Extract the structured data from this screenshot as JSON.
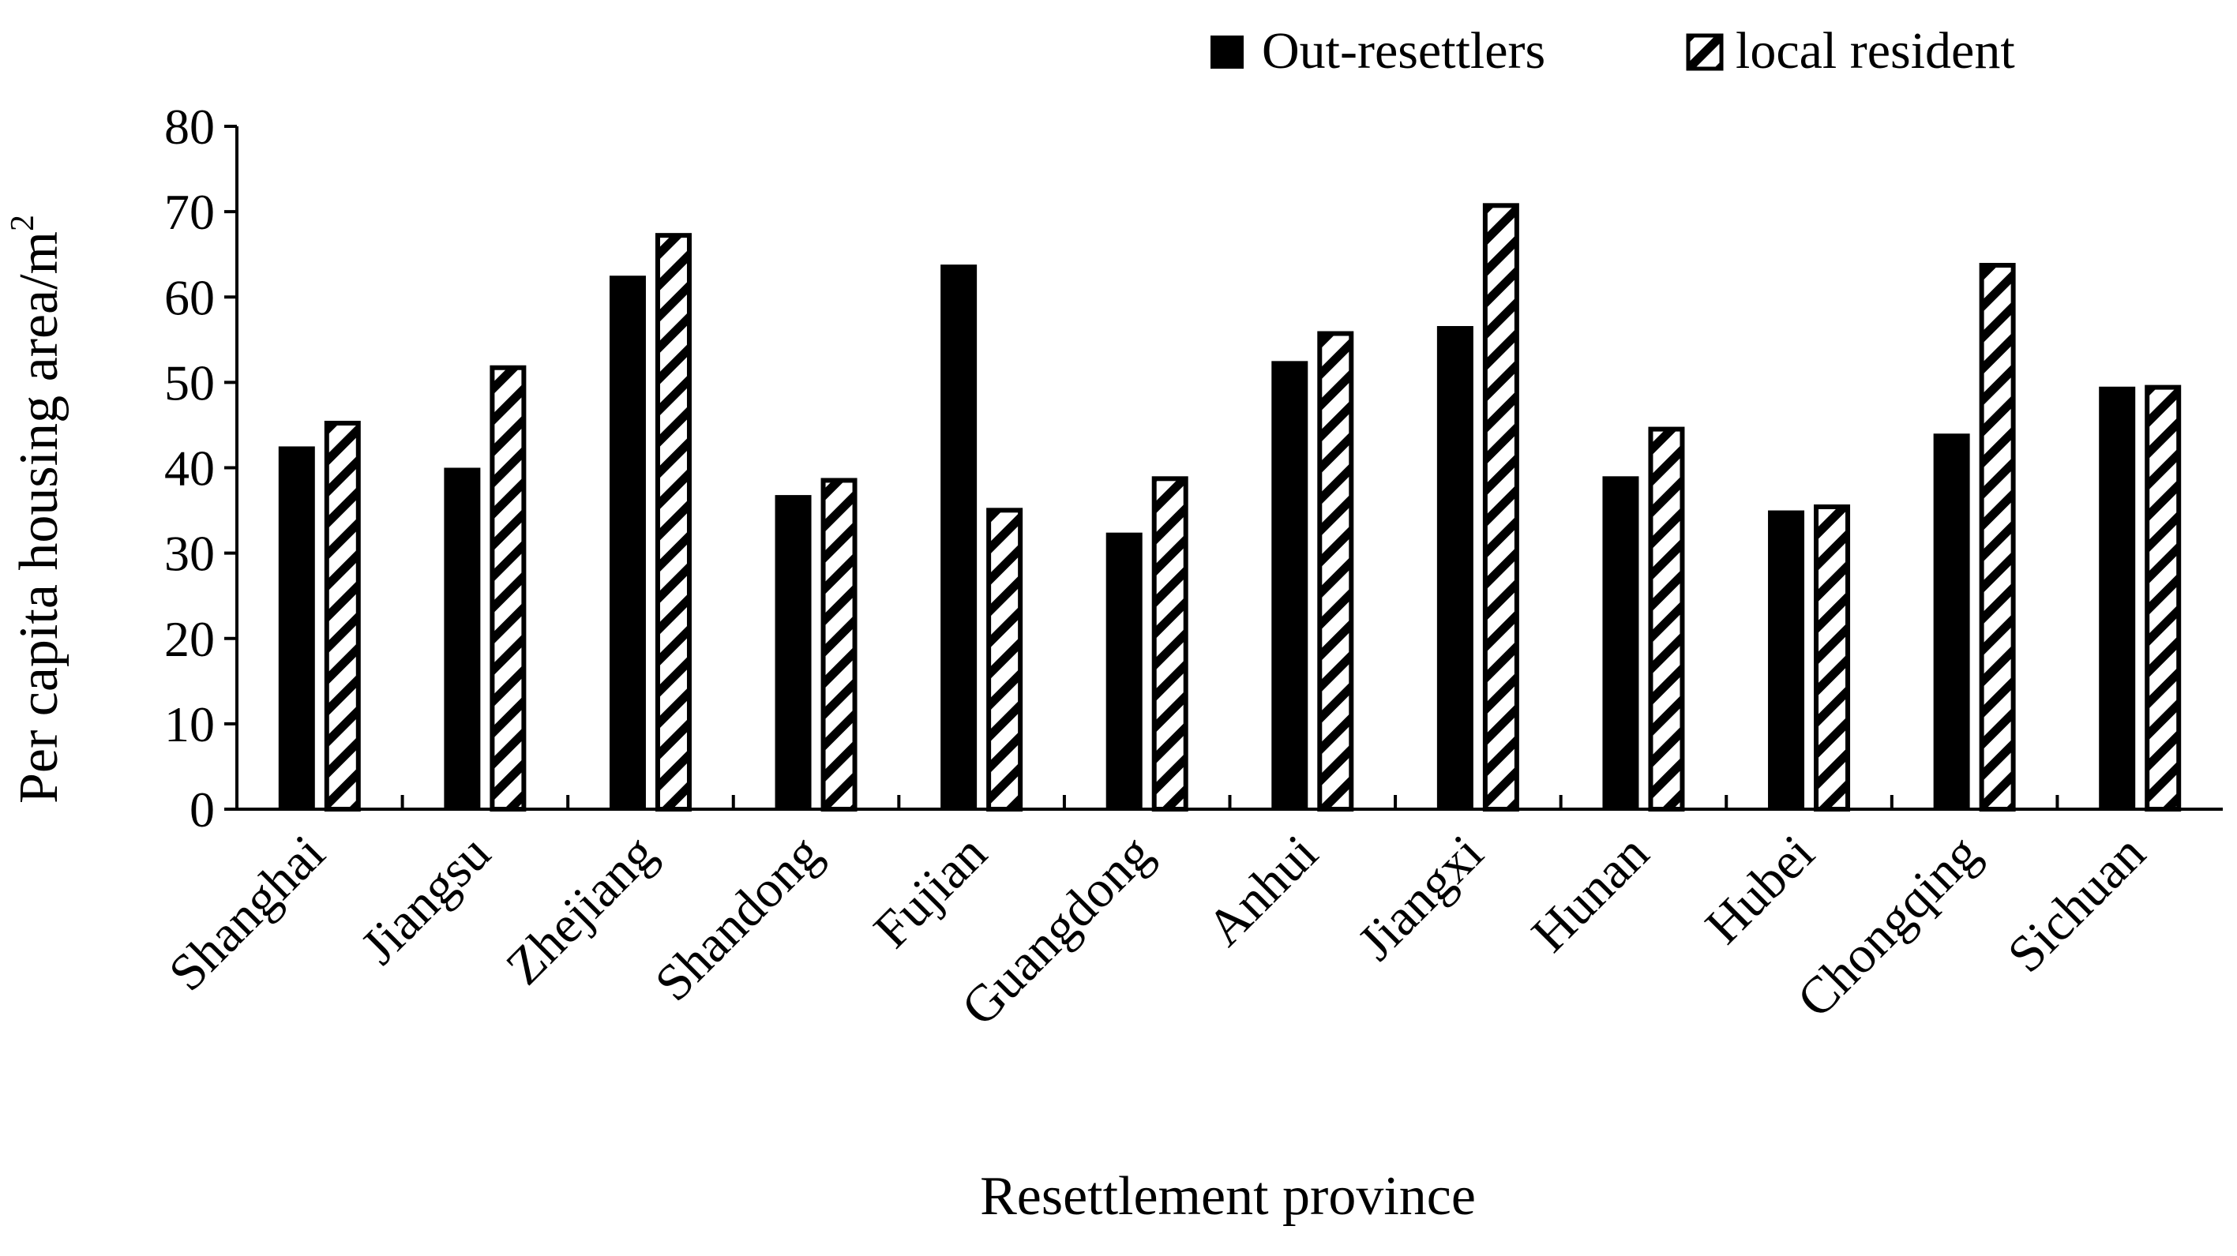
{
  "chart_data": {
    "type": "bar",
    "title": "",
    "xlabel": "Resettlement province",
    "ylabel": "Per capita housing area/m",
    "ylabel_superscript": "2",
    "ylim": [
      0,
      80
    ],
    "yticks": [
      "0",
      "10",
      "20",
      "30",
      "40",
      "50",
      "60",
      "70",
      "80"
    ],
    "grid": false,
    "legend_position": "top-right",
    "categories": [
      "Shanghai",
      "Jiangsu",
      "Zhejiang",
      "Shandong",
      "Fujian",
      "Guangdong",
      "Anhui",
      "Jiangxi",
      "Hunan",
      "Hubei",
      "Chongqing",
      "Sichuan"
    ],
    "series": [
      {
        "name": "Out-resettlers",
        "fill": "solid",
        "color": "#000000",
        "values": [
          42.5,
          40,
          62.5,
          36.8,
          63.8,
          32.4,
          52.5,
          56.6,
          39,
          35,
          44,
          49.5
        ]
      },
      {
        "name": "local resident",
        "fill": "hatched",
        "color": "#000000",
        "values": [
          45.5,
          52,
          67.5,
          38.8,
          35.3,
          39,
          56,
          71,
          44.8,
          35.7,
          64,
          49.7
        ]
      }
    ]
  }
}
